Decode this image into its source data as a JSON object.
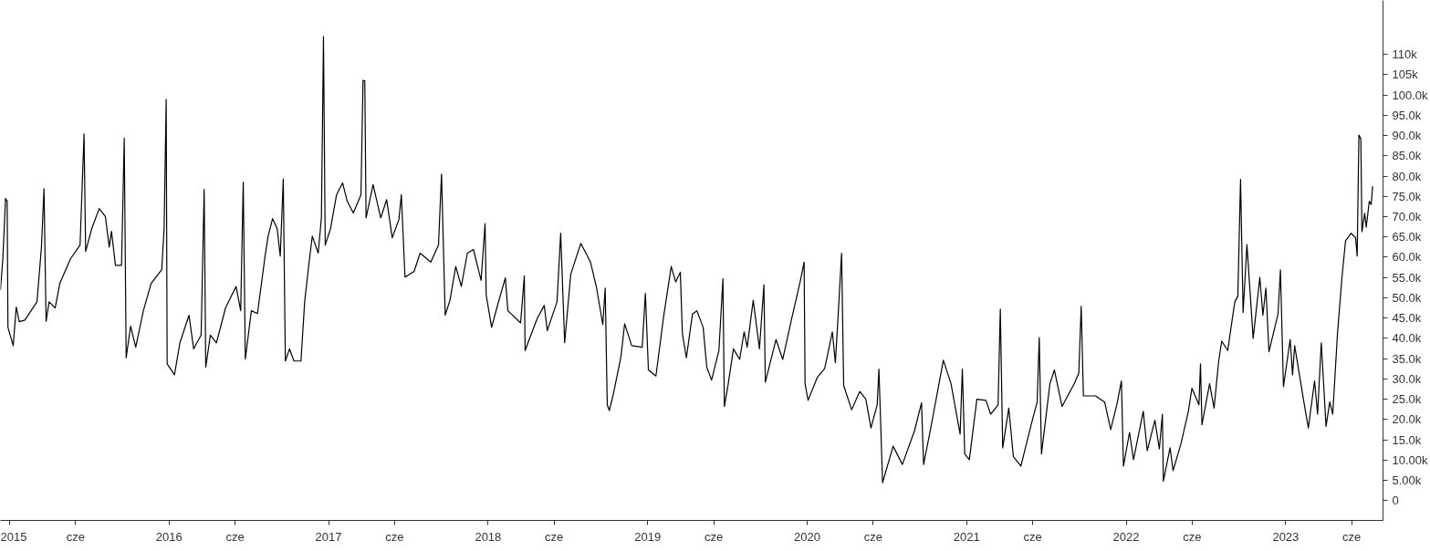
{
  "chart_data": {
    "type": "line",
    "x": [
      2014.943,
      2014.958,
      2014.975,
      2014.985,
      2014.99,
      2015.023,
      2015.042,
      2015.061,
      2015.096,
      2015.172,
      2015.2,
      2015.216,
      2015.229,
      2015.248,
      2015.286,
      2015.315,
      2015.382,
      2015.442,
      2015.467,
      2015.477,
      2015.515,
      2015.562,
      2015.601,
      2015.625,
      2015.639,
      2015.664,
      2015.702,
      2015.719,
      2015.731,
      2015.759,
      2015.791,
      2015.839,
      2015.887,
      2015.954,
      2015.969,
      2015.982,
      2015.988,
      2016.034,
      2016.068,
      2016.125,
      2016.154,
      2016.201,
      2016.22,
      2016.23,
      2016.259,
      2016.297,
      2016.354,
      2016.42,
      2016.449,
      2016.465,
      2016.478,
      2016.516,
      2016.554,
      2016.602,
      2016.621,
      2016.649,
      2016.678,
      2016.697,
      2016.716,
      2016.729,
      2016.755,
      2016.783,
      2016.827,
      2016.85,
      2016.878,
      2016.898,
      2016.935,
      2016.955,
      2016.968,
      2016.979,
      2017.012,
      2017.05,
      2017.088,
      2017.117,
      2017.155,
      2017.203,
      2017.216,
      2017.227,
      2017.235,
      2017.279,
      2017.327,
      2017.364,
      2017.399,
      2017.441,
      2017.456,
      2017.479,
      2017.536,
      2017.574,
      2017.641,
      2017.689,
      2017.708,
      2017.731,
      2017.761,
      2017.797,
      2017.832,
      2017.87,
      2017.908,
      2017.956,
      2017.981,
      2017.988,
      2018.022,
      2018.061,
      2018.108,
      2018.124,
      2018.204,
      2018.227,
      2018.232,
      2018.308,
      2018.352,
      2018.371,
      2018.432,
      2018.455,
      2018.48,
      2018.518,
      2018.581,
      2018.642,
      2018.68,
      2018.719,
      2018.734,
      2018.747,
      2018.76,
      2018.785,
      2018.833,
      2018.856,
      2018.9,
      2018.966,
      2018.986,
      2019.005,
      2019.052,
      2019.1,
      2019.148,
      2019.176,
      2019.205,
      2019.218,
      2019.243,
      2019.281,
      2019.309,
      2019.348,
      2019.371,
      2019.401,
      2019.447,
      2019.472,
      2019.481,
      2019.504,
      2019.538,
      2019.577,
      2019.605,
      2019.624,
      2019.662,
      2019.701,
      2019.729,
      2019.738,
      2019.805,
      2019.847,
      2019.901,
      2019.958,
      2019.981,
      2019.987,
      2020.006,
      2020.063,
      2020.11,
      2020.158,
      2020.177,
      2020.196,
      2020.216,
      2020.229,
      2020.279,
      2020.33,
      2020.368,
      2020.4,
      2020.439,
      2020.45,
      2020.473,
      2020.539,
      2020.597,
      2020.673,
      2020.717,
      2020.73,
      2020.774,
      2020.854,
      2020.902,
      2020.959,
      2020.973,
      2020.988,
      2021.017,
      2021.064,
      2021.121,
      2021.15,
      2021.197,
      2021.211,
      2021.226,
      2021.264,
      2021.293,
      2021.34,
      2021.407,
      2021.442,
      2021.455,
      2021.469,
      2021.522,
      2021.55,
      2021.598,
      2021.674,
      2021.703,
      2021.718,
      2021.732,
      2021.808,
      2021.865,
      2021.903,
      2021.941,
      2021.97,
      2021.983,
      2022.021,
      2022.046,
      2022.107,
      2022.132,
      2022.18,
      2022.208,
      2022.227,
      2022.233,
      2022.275,
      2022.294,
      2022.342,
      2022.39,
      2022.412,
      2022.456,
      2022.466,
      2022.475,
      2022.523,
      2022.551,
      2022.58,
      2022.599,
      2022.637,
      2022.656,
      2022.681,
      2022.7,
      2022.717,
      2022.733,
      2022.757,
      2022.796,
      2022.838,
      2022.857,
      2022.876,
      2022.895,
      2022.952,
      2022.967,
      2022.986,
      2023.028,
      2023.043,
      2023.056,
      2023.114,
      2023.142,
      2023.181,
      2023.2,
      2023.223,
      2023.253,
      2023.276,
      2023.295,
      2023.324,
      2023.352,
      2023.375,
      2023.41,
      2023.438,
      2023.448,
      2023.459,
      2023.471,
      2023.478,
      2023.495,
      2023.505,
      2023.524,
      2023.536,
      2023.545
    ],
    "series": [
      {
        "color": "#000000",
        "values": [
          52000,
          59600,
          74500,
          73800,
          42700,
          38200,
          47700,
          44100,
          44500,
          49000,
          62500,
          76900,
          44200,
          49000,
          47500,
          53500,
          59600,
          63000,
          90400,
          61400,
          67000,
          72000,
          70000,
          62500,
          66400,
          58000,
          58000,
          89300,
          35200,
          43000,
          37800,
          46800,
          53500,
          56900,
          67000,
          98900,
          33700,
          31000,
          38900,
          45700,
          37400,
          40800,
          76700,
          32900,
          40800,
          38900,
          47500,
          52800,
          46800,
          78500,
          34900,
          46800,
          46100,
          60300,
          65200,
          69500,
          67000,
          60300,
          79300,
          34400,
          37400,
          34400,
          34400,
          49000,
          58800,
          65200,
          61000,
          69700,
          114400,
          63000,
          67000,
          75400,
          78300,
          73800,
          70900,
          75400,
          103600,
          103500,
          69700,
          77900,
          69700,
          74200,
          64800,
          69300,
          75400,
          55100,
          56500,
          61000,
          58800,
          63000,
          80500,
          45700,
          49400,
          57700,
          52800,
          61000,
          61900,
          54300,
          68300,
          50700,
          42700,
          48400,
          54900,
          46800,
          43800,
          55400,
          37000,
          44900,
          48100,
          41900,
          49000,
          65900,
          38900,
          55800,
          63400,
          58800,
          52400,
          43400,
          52400,
          23600,
          22200,
          26200,
          35500,
          43600,
          38200,
          37800,
          51100,
          32200,
          30700,
          45300,
          57700,
          53900,
          56300,
          41200,
          35200,
          46000,
          46800,
          42700,
          32900,
          29700,
          37000,
          54700,
          23200,
          28400,
          37400,
          34800,
          41600,
          37800,
          49400,
          37400,
          53200,
          29200,
          39700,
          34800,
          44500,
          54300,
          58800,
          28800,
          24700,
          30300,
          32600,
          41600,
          34000,
          46800,
          61000,
          28400,
          22400,
          26900,
          25000,
          17900,
          23600,
          32400,
          4400,
          13400,
          8900,
          17200,
          24100,
          8900,
          17700,
          34600,
          28800,
          16400,
          32400,
          11500,
          10100,
          25000,
          24700,
          21300,
          23600,
          47200,
          13000,
          22800,
          10800,
          8500,
          19100,
          24300,
          40200,
          11500,
          28800,
          32200,
          23200,
          28800,
          31400,
          47900,
          25800,
          25800,
          24300,
          17500,
          23600,
          29500,
          8500,
          16800,
          10100,
          22000,
          12300,
          19800,
          12700,
          21300,
          4800,
          13000,
          7400,
          13800,
          22000,
          27700,
          23600,
          33700,
          18700,
          28800,
          22800,
          34400,
          39300,
          37000,
          42300,
          49000,
          50400,
          79200,
          46400,
          63100,
          40000,
          55000,
          45700,
          52400,
          36700,
          46000,
          56900,
          28100,
          39700,
          31000,
          38200,
          24300,
          17900,
          29500,
          21300,
          38900,
          18300,
          24300,
          21300,
          40800,
          54700,
          64000,
          65900,
          64800,
          60300,
          90100,
          89200,
          66300,
          70800,
          67400,
          73800,
          73000,
          77500
        ]
      }
    ],
    "xlim": [
      2014.943,
      2023.61
    ],
    "xticks": [
      {
        "value": 2015,
        "label": "2015"
      },
      {
        "value": 2015.414,
        "label": "cze"
      },
      {
        "value": 2016,
        "label": "2016"
      },
      {
        "value": 2016.414,
        "label": "cze"
      },
      {
        "value": 2017,
        "label": "2017"
      },
      {
        "value": 2017.414,
        "label": "cze"
      },
      {
        "value": 2018,
        "label": "2018"
      },
      {
        "value": 2018.414,
        "label": "cze"
      },
      {
        "value": 2019,
        "label": "2019"
      },
      {
        "value": 2019.414,
        "label": "cze"
      },
      {
        "value": 2020,
        "label": "2020"
      },
      {
        "value": 2020.414,
        "label": "cze"
      },
      {
        "value": 2021,
        "label": "2021"
      },
      {
        "value": 2021.414,
        "label": "cze"
      },
      {
        "value": 2022,
        "label": "2022"
      },
      {
        "value": 2022.414,
        "label": "cze"
      },
      {
        "value": 2023,
        "label": "2023"
      },
      {
        "value": 2023.414,
        "label": "cze"
      }
    ],
    "ylim": [
      -4900,
      123300
    ],
    "yticks": [
      0,
      {
        "value": 5000,
        "label": "5.00k"
      },
      {
        "value": 10000,
        "label": "10.00k"
      },
      {
        "value": 15000,
        "label": "15.0k"
      },
      {
        "value": 20000,
        "label": "20.0k"
      },
      {
        "value": 25000,
        "label": "25.0k"
      },
      {
        "value": 30000,
        "label": "30.0k"
      },
      {
        "value": 35000,
        "label": "35.0k"
      },
      {
        "value": 40000,
        "label": "40.0k"
      },
      {
        "value": 45000,
        "label": "45.0k"
      },
      {
        "value": 50000,
        "label": "50.0k"
      },
      {
        "value": 55000,
        "label": "55.0k"
      },
      {
        "value": 60000,
        "label": "60.0k"
      },
      {
        "value": 65000,
        "label": "65.0k"
      },
      {
        "value": 70000,
        "label": "70.0k"
      },
      {
        "value": 75000,
        "label": "75.0k"
      },
      {
        "value": 80000,
        "label": "80.0k"
      },
      {
        "value": 85000,
        "label": "85.0k"
      },
      {
        "value": 90000,
        "label": "90.0k"
      },
      {
        "value": 95000,
        "label": "95.0k"
      },
      {
        "value": 100000,
        "label": "100.0k"
      },
      {
        "value": 105000,
        "label": "105k"
      },
      {
        "value": 110000,
        "label": "110k"
      }
    ]
  }
}
